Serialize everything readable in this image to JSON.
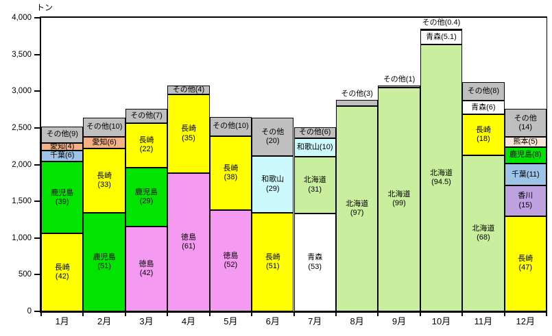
{
  "chart_data": {
    "type": "bar",
    "subtype": "stacked-percent-labeled",
    "title": "",
    "unit_label": "トン",
    "xlabel": "",
    "ylabel": "トン",
    "ylim": [
      0,
      4000
    ],
    "grid": false,
    "legend": "none (labels inside segments)",
    "y_axis": {
      "min": 0,
      "max": 4000,
      "step": 500,
      "tick_labels": [
        "0",
        "500",
        "1,000",
        "1,500",
        "2,000",
        "2,500",
        "3,000",
        "3,500",
        "4,000"
      ]
    },
    "categories": [
      "1月",
      "2月",
      "3月",
      "4月",
      "5月",
      "6月",
      "7月",
      "8月",
      "9月",
      "10月",
      "11月",
      "12月"
    ],
    "totals_tons": [
      2520,
      2640,
      2760,
      3080,
      2650,
      2640,
      2510,
      2880,
      3080,
      3850,
      3120,
      2760
    ],
    "colors": {
      "長崎": "#FFFF00",
      "鹿児島": "#00E400",
      "徳島": "#F49AF0",
      "千葉": "#9DC3E6",
      "愛知": "#F5B183",
      "和歌山": "#CCFAFC",
      "北海道": "#C9EE9D",
      "青森": "#FFFFFF",
      "香川": "#BEA2E0",
      "熊本": "#FBE5D6",
      "その他": "#BFBFBF"
    },
    "bars": [
      {
        "month": "1月",
        "total": 2520,
        "segments": [
          {
            "name": "長崎",
            "pct": 42,
            "lines": [
              "長崎",
              "(42)"
            ]
          },
          {
            "name": "鹿児島",
            "pct": 39,
            "lines": [
              "鹿児島",
              "(39)"
            ]
          },
          {
            "name": "千葉",
            "pct": 6,
            "lines": [
              "千葉(6)"
            ]
          },
          {
            "name": "愛知",
            "pct": 4,
            "lines": [
              "愛知(4)"
            ]
          },
          {
            "name": "その他",
            "pct": 9,
            "lines": [
              "その他(9)"
            ]
          }
        ]
      },
      {
        "month": "2月",
        "total": 2640,
        "segments": [
          {
            "name": "鹿児島",
            "pct": 51,
            "lines": [
              "鹿児島",
              "(51)"
            ]
          },
          {
            "name": "長崎",
            "pct": 33,
            "lines": [
              "長崎",
              "(33)"
            ]
          },
          {
            "name": "愛知",
            "pct": 6,
            "lines": [
              "愛知(6)"
            ]
          },
          {
            "name": "その他",
            "pct": 10,
            "lines": [
              "その他(10)"
            ]
          }
        ]
      },
      {
        "month": "3月",
        "total": 2760,
        "segments": [
          {
            "name": "徳島",
            "pct": 42,
            "lines": [
              "徳島",
              "(42)"
            ]
          },
          {
            "name": "鹿児島",
            "pct": 29,
            "lines": [
              "鹿児島",
              "(29)"
            ]
          },
          {
            "name": "長崎",
            "pct": 22,
            "lines": [
              "長崎",
              "(22)"
            ]
          },
          {
            "name": "その他",
            "pct": 7,
            "lines": [
              "その他(7)"
            ]
          }
        ]
      },
      {
        "month": "4月",
        "total": 3080,
        "segments": [
          {
            "name": "徳島",
            "pct": 61,
            "lines": [
              "徳島",
              "(61)"
            ]
          },
          {
            "name": "長崎",
            "pct": 35,
            "lines": [
              "長崎",
              "(35)"
            ]
          },
          {
            "name": "その他",
            "pct": 4,
            "lines": [
              "その他(4)"
            ]
          }
        ]
      },
      {
        "month": "5月",
        "total": 2650,
        "segments": [
          {
            "name": "徳島",
            "pct": 52,
            "lines": [
              "徳島",
              "(52)"
            ]
          },
          {
            "name": "長崎",
            "pct": 38,
            "lines": [
              "長崎",
              "(38)"
            ]
          },
          {
            "name": "その他",
            "pct": 10,
            "lines": [
              "その他(10)"
            ]
          }
        ]
      },
      {
        "month": "6月",
        "total": 2640,
        "segments": [
          {
            "name": "長崎",
            "pct": 51,
            "lines": [
              "長崎",
              "(51)"
            ]
          },
          {
            "name": "和歌山",
            "pct": 29,
            "lines": [
              "和歌山",
              "(29)"
            ]
          },
          {
            "name": "その他",
            "pct": 20,
            "lines": [
              "その他",
              "(20)"
            ]
          }
        ]
      },
      {
        "month": "7月",
        "total": 2510,
        "segments": [
          {
            "name": "青森",
            "pct": 53,
            "lines": [
              "青森",
              "(53)"
            ]
          },
          {
            "name": "北海道",
            "pct": 31,
            "lines": [
              "北海道",
              "(31)"
            ]
          },
          {
            "name": "和歌山",
            "pct": 10,
            "lines": [
              "和歌山(10)"
            ]
          },
          {
            "name": "その他",
            "pct": 6,
            "lines": [
              "その他(6)"
            ]
          }
        ]
      },
      {
        "month": "8月",
        "total": 2880,
        "segments": [
          {
            "name": "北海道",
            "pct": 97,
            "lines": [
              "北海道",
              "(97)"
            ]
          },
          {
            "name": "その他",
            "pct": 3,
            "lines": [
              "その他(3)"
            ],
            "label_outside": true
          }
        ]
      },
      {
        "month": "9月",
        "total": 3080,
        "segments": [
          {
            "name": "北海道",
            "pct": 99,
            "lines": [
              "北海道",
              "(99)"
            ]
          },
          {
            "name": "その他",
            "pct": 1,
            "lines": [
              "その他(1)"
            ],
            "label_outside": true
          }
        ]
      },
      {
        "month": "10月",
        "total": 3850,
        "segments": [
          {
            "name": "北海道",
            "pct": 94.5,
            "lines": [
              "北海道",
              "(94.5)"
            ]
          },
          {
            "name": "青森",
            "pct": 5.1,
            "lines": [
              "青森(5.1)"
            ]
          },
          {
            "name": "その他",
            "pct": 0.4,
            "lines": [
              "その他(0.4)"
            ],
            "label_outside": true
          }
        ]
      },
      {
        "month": "11月",
        "total": 3120,
        "segments": [
          {
            "name": "北海道",
            "pct": 68,
            "lines": [
              "北海道",
              "(68)"
            ]
          },
          {
            "name": "長崎",
            "pct": 18,
            "lines": [
              "長崎",
              "(18)"
            ]
          },
          {
            "name": "青森",
            "pct": 6,
            "lines": [
              "青森(6)"
            ]
          },
          {
            "name": "その他",
            "pct": 8,
            "lines": [
              "その他(8)"
            ]
          }
        ]
      },
      {
        "month": "12月",
        "total": 2760,
        "segments": [
          {
            "name": "長崎",
            "pct": 47,
            "lines": [
              "長崎",
              "(47)"
            ]
          },
          {
            "name": "香川",
            "pct": 15,
            "lines": [
              "香川",
              "(15)"
            ]
          },
          {
            "name": "千葉",
            "pct": 11,
            "lines": [
              "千葉(11)"
            ]
          },
          {
            "name": "鹿児島",
            "pct": 8,
            "lines": [
              "鹿児島(8)"
            ]
          },
          {
            "name": "熊本",
            "pct": 5,
            "lines": [
              "熊本(5)"
            ]
          },
          {
            "name": "その他",
            "pct": 14,
            "lines": [
              "その他",
              "(14)"
            ]
          }
        ]
      }
    ]
  }
}
